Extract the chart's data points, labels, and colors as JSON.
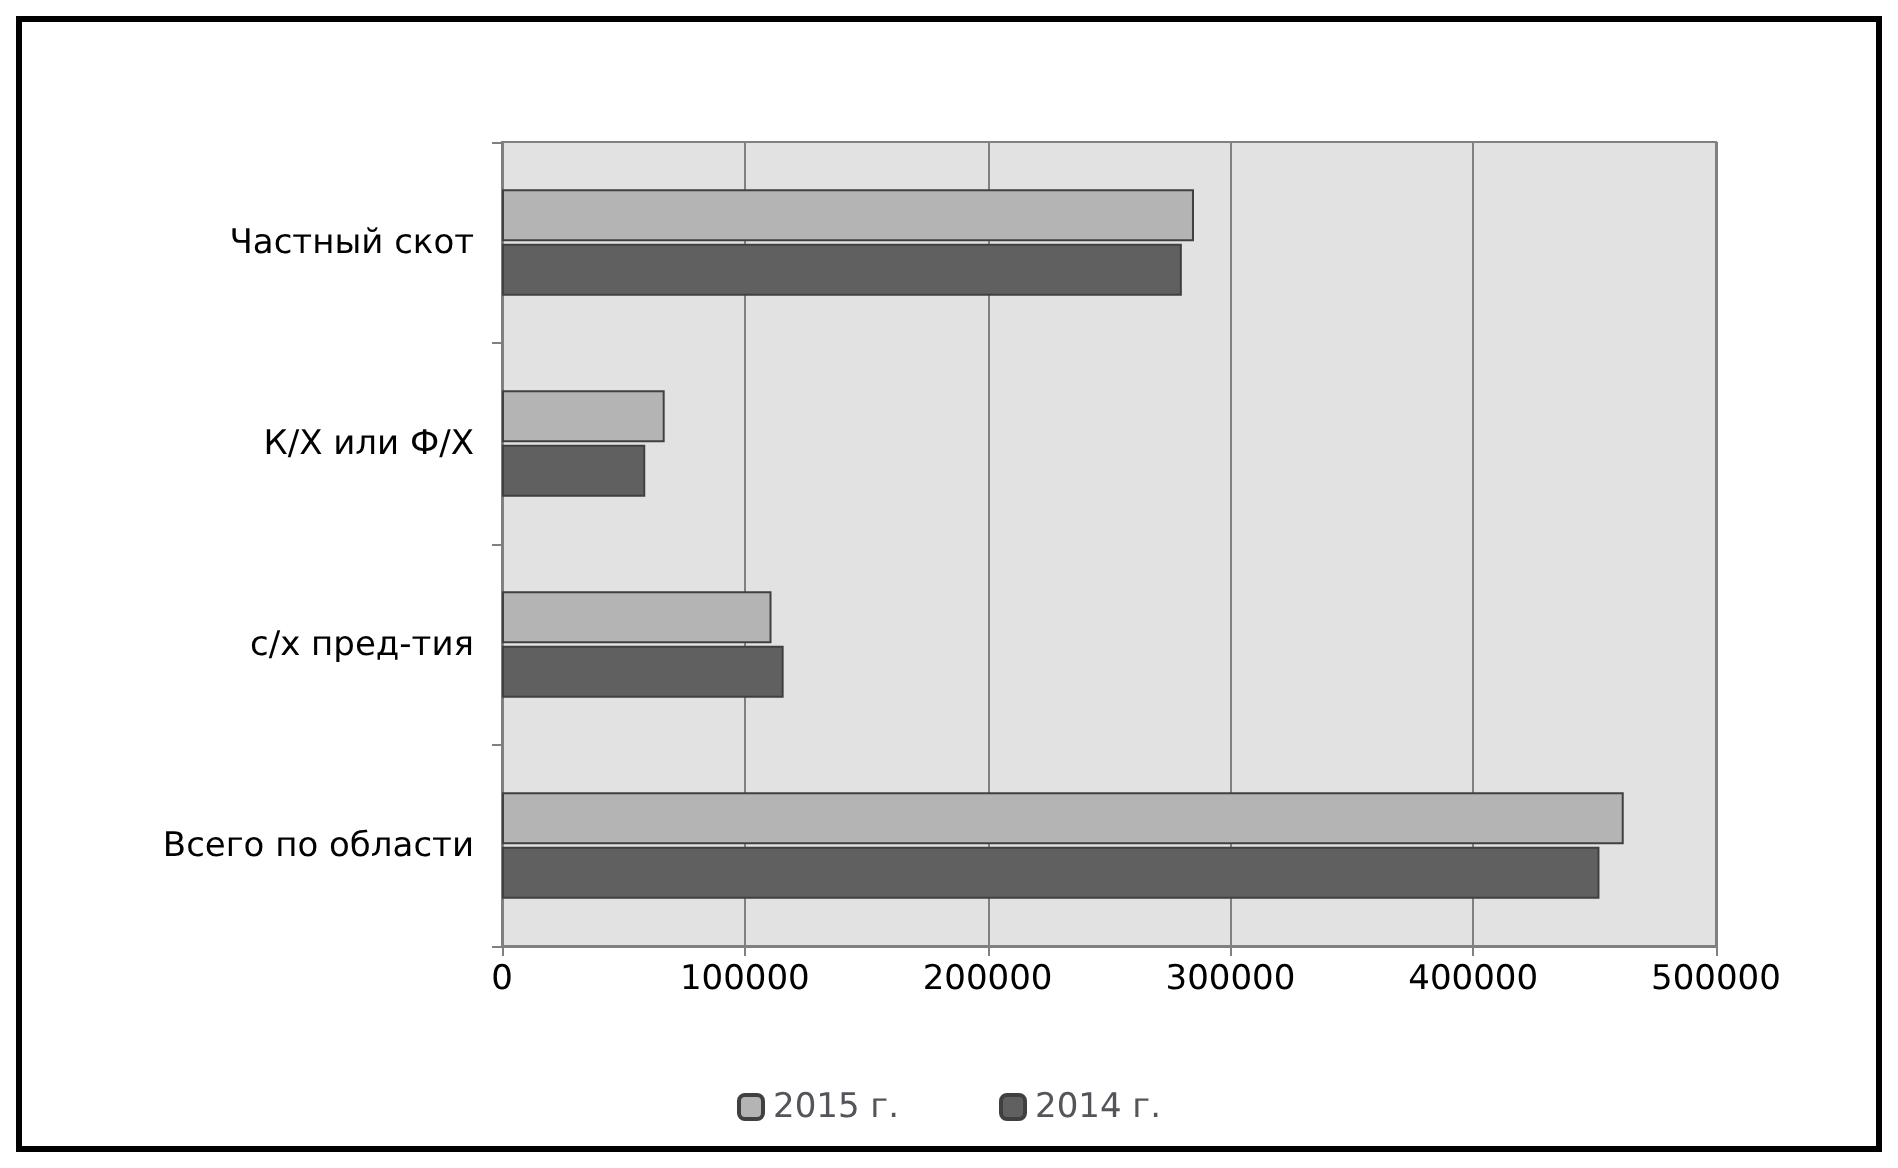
{
  "chart_data": {
    "type": "bar",
    "orientation": "horizontal",
    "categories": [
      "Частный скот",
      "К/Х или Ф/Х",
      "с/х пред-тия",
      "Всего по области"
    ],
    "series": [
      {
        "name": "2015 г.",
        "color": "#b4b4b4",
        "values": [
          285000,
          67000,
          111000,
          462000
        ]
      },
      {
        "name": "2014 г.",
        "color": "#606060",
        "values": [
          280000,
          59000,
          116000,
          452000
        ]
      }
    ],
    "xlim": [
      0,
      500000
    ],
    "xticks": [
      0,
      100000,
      200000,
      300000,
      400000,
      500000
    ],
    "grid": "x",
    "legend": "bottom"
  }
}
